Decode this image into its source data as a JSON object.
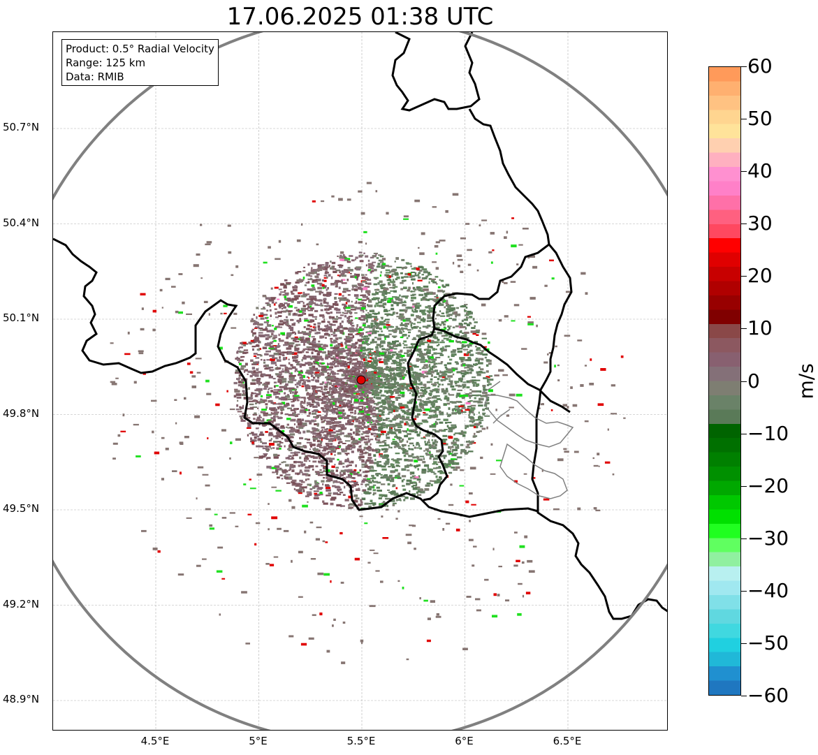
{
  "title": "17.06.2025 01:38 UTC",
  "info_box": {
    "product": "Product: 0.5° Radial Velocity",
    "range": "Range: 125 km",
    "source": "Data: RMIB"
  },
  "axes": {
    "lat_labels": [
      "50.7°N",
      "50.4°N",
      "50.1°N",
      "49.8°N",
      "49.5°N",
      "49.2°N",
      "48.9°N"
    ],
    "lat_values": [
      50.7,
      50.4,
      50.1,
      49.8,
      49.5,
      49.2,
      48.9
    ],
    "lon_labels": [
      "4.5°E",
      "5°E",
      "5.5°E",
      "6°E",
      "6.5°E"
    ],
    "lon_values": [
      4.5,
      5.0,
      5.5,
      6.0,
      6.5
    ],
    "lat_range": [
      48.8,
      51.0
    ],
    "lon_range": [
      4.0,
      7.0
    ],
    "grid": true
  },
  "radar": {
    "site_lat": 49.91,
    "site_lon": 5.505,
    "range_km": 125,
    "marker_color": "#e00000"
  },
  "colorbar": {
    "unit": "m/s",
    "min": -60,
    "max": 60,
    "tick_labels": [
      "60",
      "50",
      "40",
      "30",
      "20",
      "10",
      "0",
      "−10",
      "−20",
      "−30",
      "−40",
      "−50",
      "−60"
    ],
    "tick_values": [
      60,
      50,
      40,
      30,
      20,
      10,
      0,
      -10,
      -20,
      -30,
      -40,
      -50,
      -60
    ],
    "colors_top_to_bottom": [
      "#ff9a5a",
      "#ffb070",
      "#ffc282",
      "#ffd590",
      "#ffe39a",
      "#ffd0b0",
      "#ffb0c0",
      "#ff90d0",
      "#ff80c8",
      "#ff70a8",
      "#ff6080",
      "#ff4860",
      "#ff0000",
      "#e00000",
      "#c80000",
      "#b00000",
      "#980000",
      "#800000",
      "#8a4848",
      "#8c5860",
      "#886070",
      "#847078",
      "#7e7e72",
      "#6a8268",
      "#5a7a58",
      "#006400",
      "#007000",
      "#008000",
      "#009000",
      "#00a800",
      "#00c800",
      "#00e000",
      "#20ff20",
      "#60ff60",
      "#90f0a0",
      "#b8f0f0",
      "#a0e8f0",
      "#80e0e8",
      "#60d8e0",
      "#40d8e0",
      "#20d0e0",
      "#20b8d8",
      "#2090d0",
      "#1f77c0"
    ]
  }
}
